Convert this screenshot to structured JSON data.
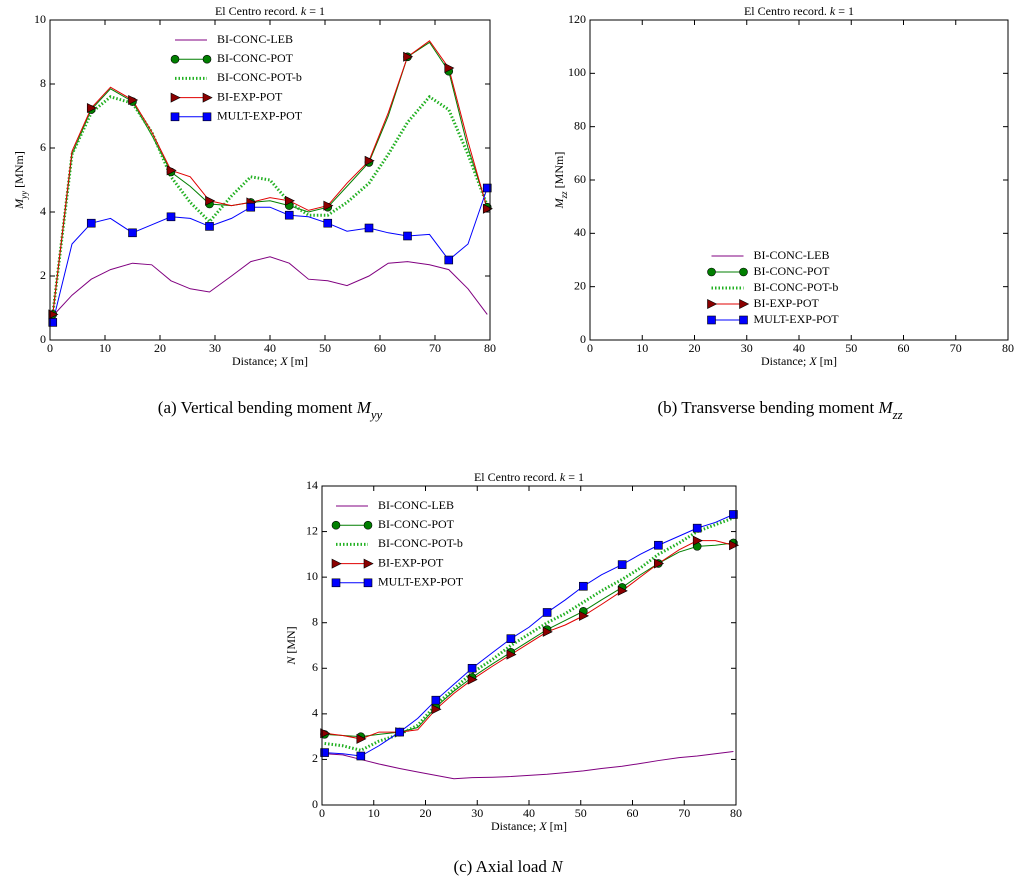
{
  "chart_data": [
    {
      "type": "line",
      "title": [
        "El Centro record. ",
        "k",
        " = 1"
      ],
      "xlabel": [
        "Distance; ",
        "X",
        " [m]"
      ],
      "ylabel": [
        "M",
        "yy",
        " [MNm]"
      ],
      "caption": [
        "(a)  Vertical bending moment ",
        "M",
        "yy"
      ],
      "xlim": [
        0,
        80
      ],
      "xticks": [
        0,
        10,
        20,
        30,
        40,
        50,
        60,
        70,
        80
      ],
      "ylim": [
        0,
        10
      ],
      "yticks": [
        0,
        2,
        4,
        6,
        8,
        10
      ],
      "legend": "upper center",
      "x": [
        0.5,
        4,
        7.5,
        11,
        15,
        18.5,
        22,
        25.5,
        29,
        33,
        36.5,
        40,
        43.5,
        47,
        50.5,
        54,
        58,
        61.5,
        65,
        69,
        72.5,
        76,
        79.5
      ],
      "series": [
        {
          "name": "BI-CONC-LEB",
          "color": "#800080",
          "marker": "none",
          "linestyle": "solid",
          "values": [
            0.75,
            1.4,
            1.9,
            2.2,
            2.4,
            2.35,
            1.85,
            1.6,
            1.5,
            2.0,
            2.45,
            2.6,
            2.4,
            1.9,
            1.85,
            1.7,
            2.0,
            2.4,
            2.45,
            2.35,
            2.2,
            1.6,
            0.8
          ]
        },
        {
          "name": "BI-CONC-POT",
          "color": "#007f00",
          "marker": "circle",
          "linestyle": "solid",
          "values": [
            0.8,
            5.8,
            7.2,
            7.85,
            7.45,
            6.4,
            5.25,
            4.8,
            4.25,
            4.2,
            4.3,
            4.35,
            4.2,
            4.0,
            4.15,
            4.8,
            5.55,
            7.0,
            8.85,
            9.3,
            8.4,
            6.0,
            4.15
          ]
        },
        {
          "name": "BI-CONC-POT-b",
          "color": "#22b022",
          "marker": "none",
          "linestyle": "dotted",
          "values": [
            0.8,
            5.8,
            7.1,
            7.6,
            7.4,
            6.5,
            5.1,
            4.3,
            3.7,
            4.5,
            5.1,
            5.0,
            4.3,
            3.9,
            3.9,
            4.3,
            4.9,
            5.8,
            6.8,
            7.6,
            7.2,
            5.8,
            4.2
          ]
        },
        {
          "name": "BI-EXP-POT",
          "color": "#e00000",
          "marker": "triangle",
          "linestyle": "solid",
          "values": [
            0.8,
            5.9,
            7.25,
            7.9,
            7.5,
            6.5,
            5.3,
            5.1,
            4.35,
            4.2,
            4.3,
            4.45,
            4.35,
            4.05,
            4.2,
            4.9,
            5.6,
            7.1,
            8.85,
            9.35,
            8.5,
            6.2,
            4.1
          ]
        },
        {
          "name": "MULT-EXP-POT",
          "color": "#0000ff",
          "marker": "square",
          "linestyle": "solid",
          "values": [
            0.55,
            3.0,
            3.65,
            3.8,
            3.35,
            3.6,
            3.85,
            3.8,
            3.55,
            3.8,
            4.15,
            4.15,
            3.9,
            3.85,
            3.65,
            3.4,
            3.5,
            3.35,
            3.25,
            3.3,
            2.5,
            3.0,
            4.75
          ]
        }
      ]
    },
    {
      "type": "line",
      "title": [
        "El Centro record. ",
        "k",
        " = 1"
      ],
      "xlabel": [
        "Distance; ",
        "X",
        " [m]"
      ],
      "ylabel": [
        "M",
        "zz",
        " [MNm]"
      ],
      "caption": [
        "(b)  Transverse bending moment ",
        "M",
        "zz"
      ],
      "xlim": [
        0,
        80
      ],
      "xticks": [
        0,
        10,
        20,
        30,
        40,
        50,
        60,
        70,
        80
      ],
      "ylim": [
        0,
        120
      ],
      "yticks": [
        0,
        20,
        40,
        60,
        80,
        100,
        120
      ],
      "legend": "lower center",
      "x": [],
      "series": [
        {
          "name": "BI-CONC-LEB",
          "color": "#800080",
          "marker": "none",
          "linestyle": "solid",
          "values": []
        },
        {
          "name": "BI-CONC-POT",
          "color": "#007f00",
          "marker": "circle",
          "linestyle": "solid",
          "values": []
        },
        {
          "name": "BI-CONC-POT-b",
          "color": "#22b022",
          "marker": "none",
          "linestyle": "dotted",
          "values": []
        },
        {
          "name": "BI-EXP-POT",
          "color": "#e00000",
          "marker": "triangle",
          "linestyle": "solid",
          "values": []
        },
        {
          "name": "MULT-EXP-POT",
          "color": "#0000ff",
          "marker": "square",
          "linestyle": "solid",
          "values": []
        }
      ]
    },
    {
      "type": "line",
      "title": [
        "El Centro record. ",
        "k",
        " = 1"
      ],
      "xlabel": [
        "Distance; ",
        "X",
        " [m]"
      ],
      "ylabel": [
        "N",
        " [MN]"
      ],
      "caption": [
        "(c)  Axial load ",
        "N"
      ],
      "xlim": [
        0,
        80
      ],
      "xticks": [
        0,
        10,
        20,
        30,
        40,
        50,
        60,
        70,
        80
      ],
      "ylim": [
        0,
        14
      ],
      "yticks": [
        0,
        2,
        4,
        6,
        8,
        10,
        12,
        14
      ],
      "legend": "upper left",
      "x": [
        0.5,
        4,
        7.5,
        11,
        15,
        18.5,
        22,
        25.5,
        29,
        33,
        36.5,
        40,
        43.5,
        47,
        50.5,
        54,
        58,
        61.5,
        65,
        69,
        72.5,
        76,
        79.5
      ],
      "series": [
        {
          "name": "BI-CONC-LEB",
          "color": "#800080",
          "marker": "none",
          "linestyle": "solid",
          "values": [
            2.25,
            2.2,
            2.0,
            1.8,
            1.6,
            1.45,
            1.3,
            1.15,
            1.2,
            1.22,
            1.25,
            1.3,
            1.35,
            1.42,
            1.5,
            1.6,
            1.7,
            1.82,
            1.95,
            2.08,
            2.15,
            2.25,
            2.35
          ]
        },
        {
          "name": "BI-CONC-POT",
          "color": "#007f00",
          "marker": "circle",
          "linestyle": "solid",
          "values": [
            3.1,
            3.05,
            3.0,
            3.1,
            3.2,
            3.4,
            4.3,
            5.0,
            5.6,
            6.2,
            6.7,
            7.2,
            7.7,
            8.1,
            8.5,
            9.0,
            9.55,
            10.1,
            10.6,
            11.1,
            11.35,
            11.4,
            11.5
          ]
        },
        {
          "name": "BI-CONC-POT-b",
          "color": "#22b022",
          "marker": "none",
          "linestyle": "dotted",
          "values": [
            2.7,
            2.6,
            2.4,
            2.8,
            3.1,
            3.5,
            4.4,
            5.1,
            5.8,
            6.4,
            7.0,
            7.5,
            8.0,
            8.4,
            8.9,
            9.4,
            9.9,
            10.4,
            11.0,
            11.5,
            12.0,
            12.3,
            12.6
          ]
        },
        {
          "name": "BI-EXP-POT",
          "color": "#e00000",
          "marker": "triangle",
          "linestyle": "solid",
          "values": [
            3.15,
            3.05,
            2.9,
            3.2,
            3.2,
            3.3,
            4.2,
            4.9,
            5.5,
            6.1,
            6.6,
            7.1,
            7.6,
            7.9,
            8.3,
            8.8,
            9.4,
            10.0,
            10.6,
            11.2,
            11.6,
            11.6,
            11.4
          ]
        },
        {
          "name": "MULT-EXP-POT",
          "color": "#0000ff",
          "marker": "square",
          "linestyle": "solid",
          "values": [
            2.3,
            2.25,
            2.15,
            2.6,
            3.2,
            3.8,
            4.6,
            5.3,
            6.0,
            6.7,
            7.3,
            7.8,
            8.45,
            9.0,
            9.6,
            10.1,
            10.55,
            11.0,
            11.4,
            11.8,
            12.15,
            12.4,
            12.75
          ]
        }
      ]
    }
  ]
}
